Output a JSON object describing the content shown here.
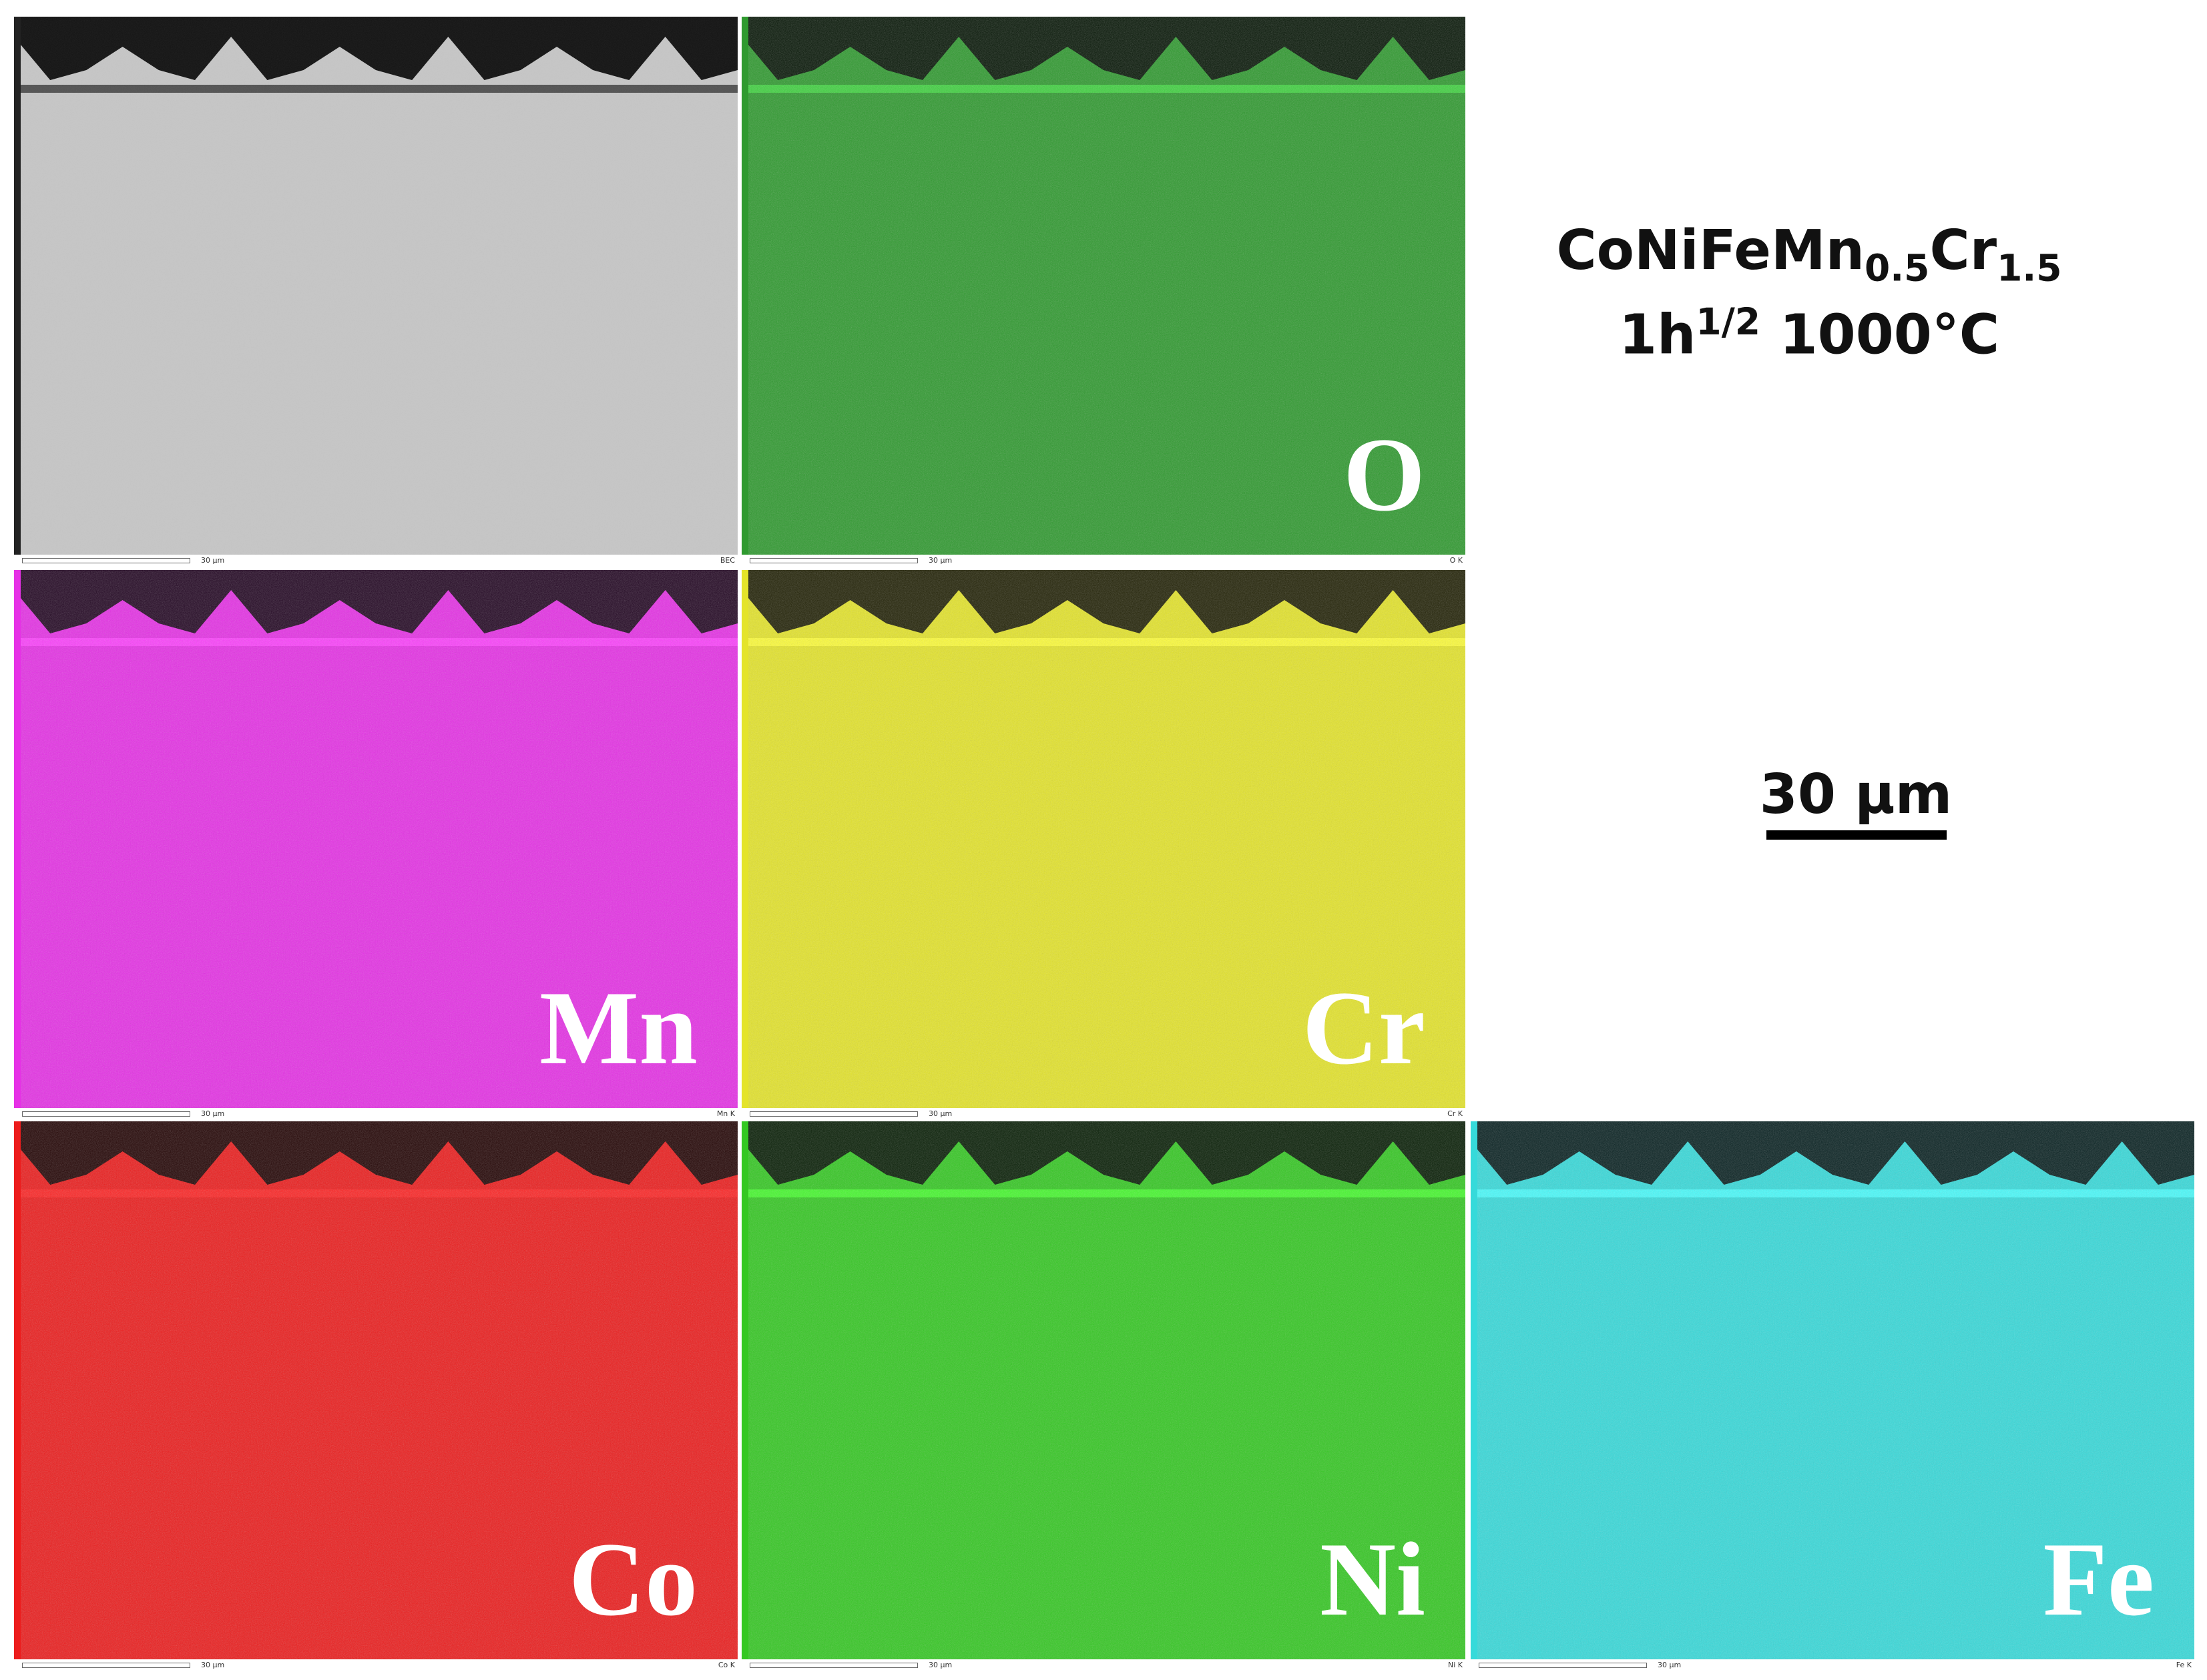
{
  "title": {
    "base1": "CoNiFeMn",
    "sub1": "0.5",
    "base2": "Cr",
    "sub2": "1.5"
  },
  "condition": {
    "base": "1h",
    "sup": "1/2",
    "rest": " 1000°C"
  },
  "scale_bar": "30 µm",
  "panels": [
    {
      "label": null,
      "color": "#c6c6c6",
      "footer_scale": "30 µm",
      "footer_tag": "BEC"
    },
    {
      "label": "O",
      "color": "#2f9a2f",
      "footer_scale": "30 µm",
      "footer_tag": "O K"
    },
    {
      "label": "Mn",
      "color": "#e630e6",
      "footer_scale": "30 µm",
      "footer_tag": "Mn K"
    },
    {
      "label": "Cr",
      "color": "#e4e42a",
      "footer_scale": "30 µm",
      "footer_tag": "Cr K"
    },
    {
      "label": "Co",
      "color": "#ec1c1c",
      "footer_scale": "30 µm",
      "footer_tag": "Co K"
    },
    {
      "label": "Ni",
      "color": "#34c822",
      "footer_scale": "30 µm",
      "footer_tag": "Ni K"
    },
    {
      "label": "Fe",
      "color": "#36dada",
      "footer_scale": "30 µm",
      "footer_tag": "Fe K"
    }
  ]
}
